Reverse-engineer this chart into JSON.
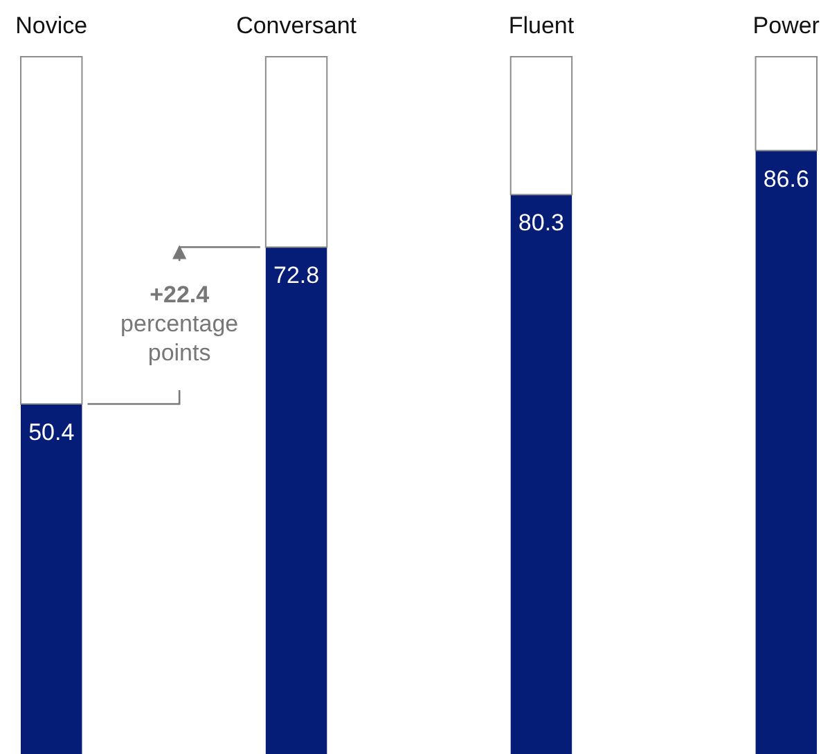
{
  "chart_data": {
    "type": "bar",
    "stacked": true,
    "categories": [
      "Novice",
      "Conversant",
      "Fluent",
      "Power"
    ],
    "series": [
      {
        "color": "#061d77",
        "values": [
          50.4,
          72.8,
          80.3,
          86.6
        ],
        "value_labels": [
          "50.4",
          "72.8",
          "80.3",
          "86.6"
        ]
      },
      {
        "color": "#ffffff",
        "values": [
          49.6,
          27.2,
          19.7,
          13.4
        ]
      }
    ],
    "ylim": [
      0,
      100
    ],
    "annotations": [
      "+22.4\npercentage\npoints"
    ]
  }
}
